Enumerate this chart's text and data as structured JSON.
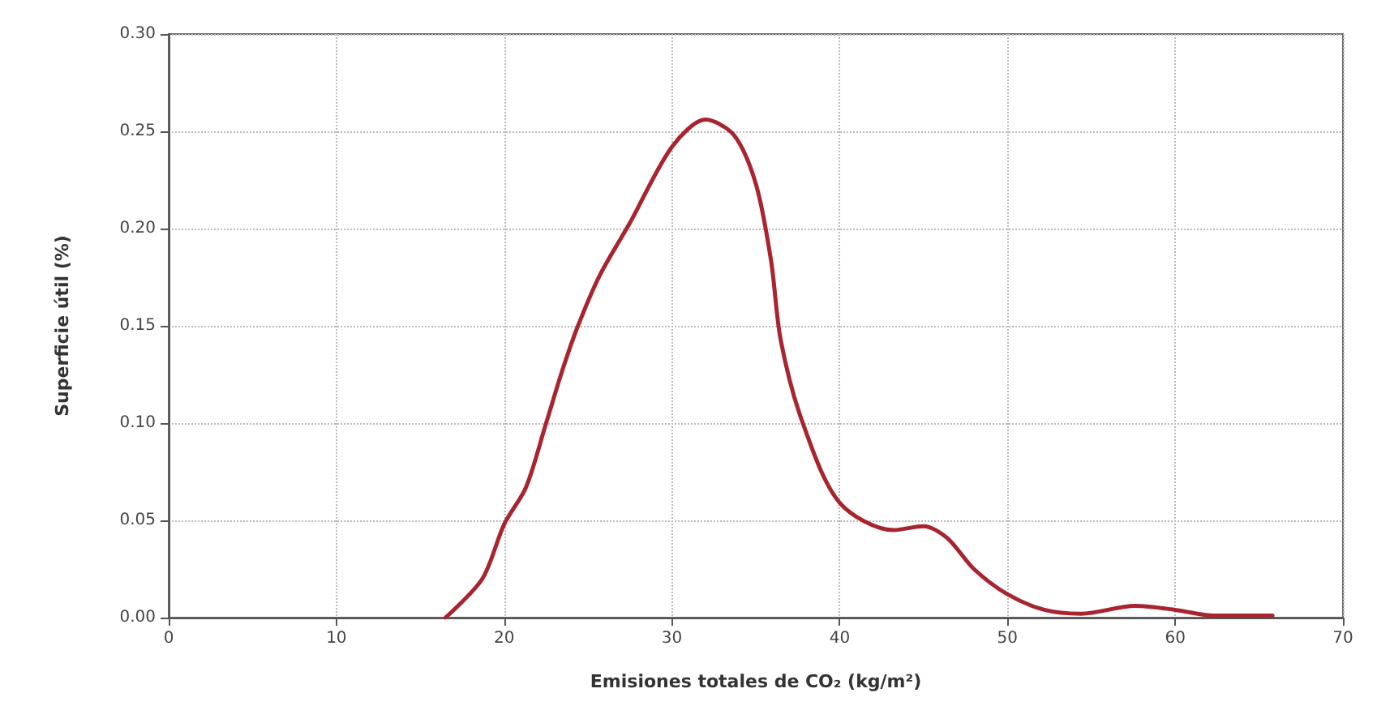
{
  "chart_data": {
    "type": "line",
    "xlabel": "Emisiones totales de CO₂ (kg/m²)",
    "ylabel": "Superficie útil (%)",
    "series": [
      {
        "color": "#a8242f",
        "x": [
          16.5,
          18.7,
          20,
          21.3,
          22.5,
          23.5,
          24.4,
          25.7,
          27.5,
          30,
          32,
          33.7,
          35,
          35.9,
          36.5,
          37.8,
          40,
          43.2,
          45,
          46.4,
          48,
          50,
          52.2,
          54.4,
          57.6,
          60,
          62.3,
          65.8
        ],
        "values": [
          0.0,
          0.02,
          0.048,
          0.067,
          0.1,
          0.128,
          0.15,
          0.176,
          0.203,
          0.242,
          0.256,
          0.248,
          0.223,
          0.184,
          0.142,
          0.1,
          0.059,
          0.045,
          0.047,
          0.041,
          0.025,
          0.012,
          0.004,
          0.002,
          0.006,
          0.004,
          0.001,
          0.001
        ]
      }
    ],
    "xlim": [
      0,
      70
    ],
    "xticks": [
      0,
      10,
      20,
      30,
      40,
      50,
      60,
      70
    ],
    "ylim": [
      0,
      0.3
    ],
    "yticks": [
      {
        "value": 0,
        "label": "0.00"
      },
      {
        "value": 0.05,
        "label": "0.05"
      },
      {
        "value": 0.1,
        "label": "0.10"
      },
      {
        "value": 0.15,
        "label": "0.15"
      },
      {
        "value": 0.2,
        "label": "0.20"
      },
      {
        "value": 0.25,
        "label": "0.25"
      },
      {
        "value": 0.3,
        "label": "0.30"
      }
    ],
    "grid": true,
    "marker": "none",
    "line_style": "solid"
  }
}
